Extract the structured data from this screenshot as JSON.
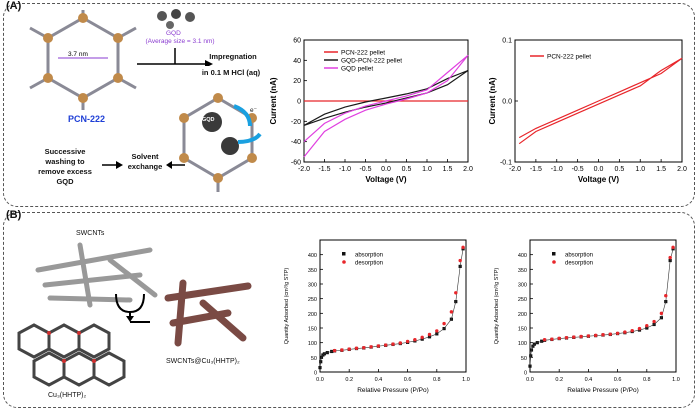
{
  "panel_a": {
    "label": "(A)",
    "mof_name": "PCN-222",
    "pore_size": "3.7 nm",
    "gqd_label": "GQD",
    "gqd_size": "(Average size = 3.1 nm)",
    "step_impregnation_1": "Impregnation",
    "step_impregnation_2": "in 0.1 M HCl (aq)",
    "step_wash_1": "Successive",
    "step_wash_2": "washing to",
    "step_wash_3": "remove excess",
    "step_wash_4": "GQD",
    "step_solvent_1": "Solvent",
    "step_solvent_2": "exchange",
    "gqd_tag": "GQD",
    "electron": "e⁻"
  },
  "panel_b": {
    "label": "(B)",
    "swcnt_label": "SWCNTs",
    "cu_label": "Cu₃(HHTP)₂",
    "composite_label": "SWCNTs@Cu₃(HHTP)₂"
  },
  "chart_data": [
    {
      "type": "line",
      "title": "",
      "xlabel": "Voltage (V)",
      "ylabel": "Current (nA)",
      "xlim": [
        -2.0,
        2.0
      ],
      "ylim": [
        -60,
        60
      ],
      "xticks": [
        "-2.0",
        "-1.5",
        "-1.0",
        "-0.5",
        "0.0",
        "0.5",
        "1.0",
        "1.5",
        "2.0"
      ],
      "yticks": [
        "-60",
        "-40",
        "-20",
        "0",
        "20",
        "40",
        "60"
      ],
      "series": [
        {
          "name": "PCN-222 pellet",
          "color": "#e8262b",
          "x": [
            -2.0,
            2.0
          ],
          "y": [
            0,
            0
          ]
        },
        {
          "name": "GQD-PCN-222 pellet",
          "color": "#1a1a1a",
          "x": [
            -2.0,
            -1.5,
            -1.0,
            -0.5,
            0.0,
            0.5,
            1.0,
            1.5,
            2.0,
            1.5,
            1.0,
            0.5,
            0.0,
            -0.5,
            -1.0,
            -1.5,
            -2.0
          ],
          "y": [
            -24,
            -17,
            -11,
            -6,
            -2,
            3,
            8,
            16,
            30,
            22,
            12,
            7,
            3,
            -1,
            -6,
            -13,
            -24
          ]
        },
        {
          "name": "GQD pellet",
          "color": "#e040e0",
          "x": [
            -2.0,
            -1.5,
            -1.0,
            -0.5,
            0.0,
            0.5,
            1.0,
            1.5,
            2.0,
            1.5,
            1.0,
            0.5,
            0.0,
            -0.5,
            -1.0,
            -1.5,
            -2.0
          ],
          "y": [
            -55,
            -30,
            -18,
            -9,
            -3,
            2,
            8,
            20,
            45,
            28,
            11,
            5,
            0,
            -5,
            -12,
            -22,
            -40
          ]
        }
      ]
    },
    {
      "type": "line",
      "title": "",
      "xlabel": "Voltage (V)",
      "ylabel": "Current (nA)",
      "xlim": [
        -2.0,
        2.0
      ],
      "ylim": [
        -0.1,
        0.1
      ],
      "xticks": [
        "-2.0",
        "-1.5",
        "-1.0",
        "-0.5",
        "0.0",
        "0.5",
        "1.0",
        "1.5",
        "2.0"
      ],
      "yticks": [
        "-0.1",
        "0.0",
        "0.1"
      ],
      "series": [
        {
          "name": "PCN-222 pellet",
          "color": "#e8262b",
          "x": [
            -1.9,
            -1.5,
            -1.0,
            -0.5,
            0.0,
            0.5,
            1.0,
            1.4,
            1.5,
            2.0,
            1.5,
            1.0,
            0.5,
            0.0,
            -0.5,
            -1.0,
            -1.5,
            -1.9
          ],
          "y": [
            -0.07,
            -0.05,
            -0.035,
            -0.02,
            -0.005,
            0.01,
            0.025,
            0.045,
            0.05,
            0.07,
            0.045,
            0.03,
            0.015,
            0.0,
            -0.015,
            -0.03,
            -0.045,
            -0.06
          ]
        }
      ]
    },
    {
      "type": "scatter",
      "title": "",
      "xlabel": "Relative Pressure (P/Po)",
      "ylabel": "Quantity Adsorbed (cm³/g STP)",
      "xlim": [
        0.0,
        1.0
      ],
      "ylim": [
        0,
        450
      ],
      "xticks": [
        "0.0",
        "0.2",
        "0.4",
        "0.6",
        "0.8",
        "1.0"
      ],
      "yticks": [
        "0",
        "50",
        "100",
        "150",
        "200",
        "250",
        "300",
        "350",
        "400"
      ],
      "series": [
        {
          "name": "absorption",
          "color": "#111111",
          "x": [
            0.0,
            0.005,
            0.01,
            0.02,
            0.03,
            0.05,
            0.08,
            0.1,
            0.15,
            0.2,
            0.25,
            0.3,
            0.35,
            0.4,
            0.45,
            0.5,
            0.55,
            0.6,
            0.65,
            0.7,
            0.75,
            0.8,
            0.85,
            0.9,
            0.93,
            0.96,
            0.98
          ],
          "y": [
            15,
            35,
            50,
            58,
            62,
            66,
            70,
            72,
            74,
            77,
            80,
            82,
            85,
            88,
            91,
            94,
            97,
            101,
            106,
            112,
            120,
            130,
            148,
            180,
            240,
            360,
            420
          ]
        },
        {
          "name": "desorption",
          "color": "#e8262b",
          "x": [
            0.98,
            0.96,
            0.93,
            0.9,
            0.85,
            0.8,
            0.75,
            0.7,
            0.65,
            0.6,
            0.55,
            0.5,
            0.45,
            0.4,
            0.35,
            0.3,
            0.25,
            0.2,
            0.15,
            0.1
          ],
          "y": [
            425,
            380,
            270,
            205,
            165,
            140,
            128,
            118,
            110,
            104,
            99,
            95,
            92,
            89,
            86,
            83,
            81,
            78,
            75,
            73
          ]
        }
      ]
    },
    {
      "type": "scatter",
      "title": "",
      "xlabel": "Relative Pressure (P/Po)",
      "ylabel": "Quantity Adsorbed (cm³/g STP)",
      "xlim": [
        0.0,
        1.0
      ],
      "ylim": [
        0,
        450
      ],
      "xticks": [
        "0.0",
        "0.2",
        "0.4",
        "0.6",
        "0.8",
        "1.0"
      ],
      "yticks": [
        "0",
        "50",
        "100",
        "150",
        "200",
        "250",
        "300",
        "350",
        "400"
      ],
      "series": [
        {
          "name": "absorption",
          "color": "#111111",
          "x": [
            0.0,
            0.005,
            0.01,
            0.02,
            0.03,
            0.05,
            0.08,
            0.1,
            0.15,
            0.2,
            0.25,
            0.3,
            0.35,
            0.4,
            0.45,
            0.5,
            0.55,
            0.6,
            0.65,
            0.7,
            0.75,
            0.8,
            0.85,
            0.9,
            0.93,
            0.96,
            0.98
          ],
          "y": [
            20,
            55,
            75,
            88,
            95,
            100,
            105,
            108,
            111,
            114,
            116,
            118,
            120,
            122,
            124,
            126,
            128,
            131,
            134,
            138,
            143,
            150,
            162,
            185,
            240,
            380,
            420
          ]
        },
        {
          "name": "desorption",
          "color": "#e8262b",
          "x": [
            0.98,
            0.96,
            0.93,
            0.9,
            0.85,
            0.8,
            0.75,
            0.7,
            0.65,
            0.6,
            0.55,
            0.5,
            0.45,
            0.4,
            0.35,
            0.3,
            0.25,
            0.2,
            0.15,
            0.1
          ],
          "y": [
            425,
            390,
            260,
            200,
            172,
            158,
            148,
            141,
            136,
            132,
            129,
            127,
            125,
            123,
            121,
            119,
            117,
            115,
            112,
            110
          ]
        }
      ]
    }
  ]
}
